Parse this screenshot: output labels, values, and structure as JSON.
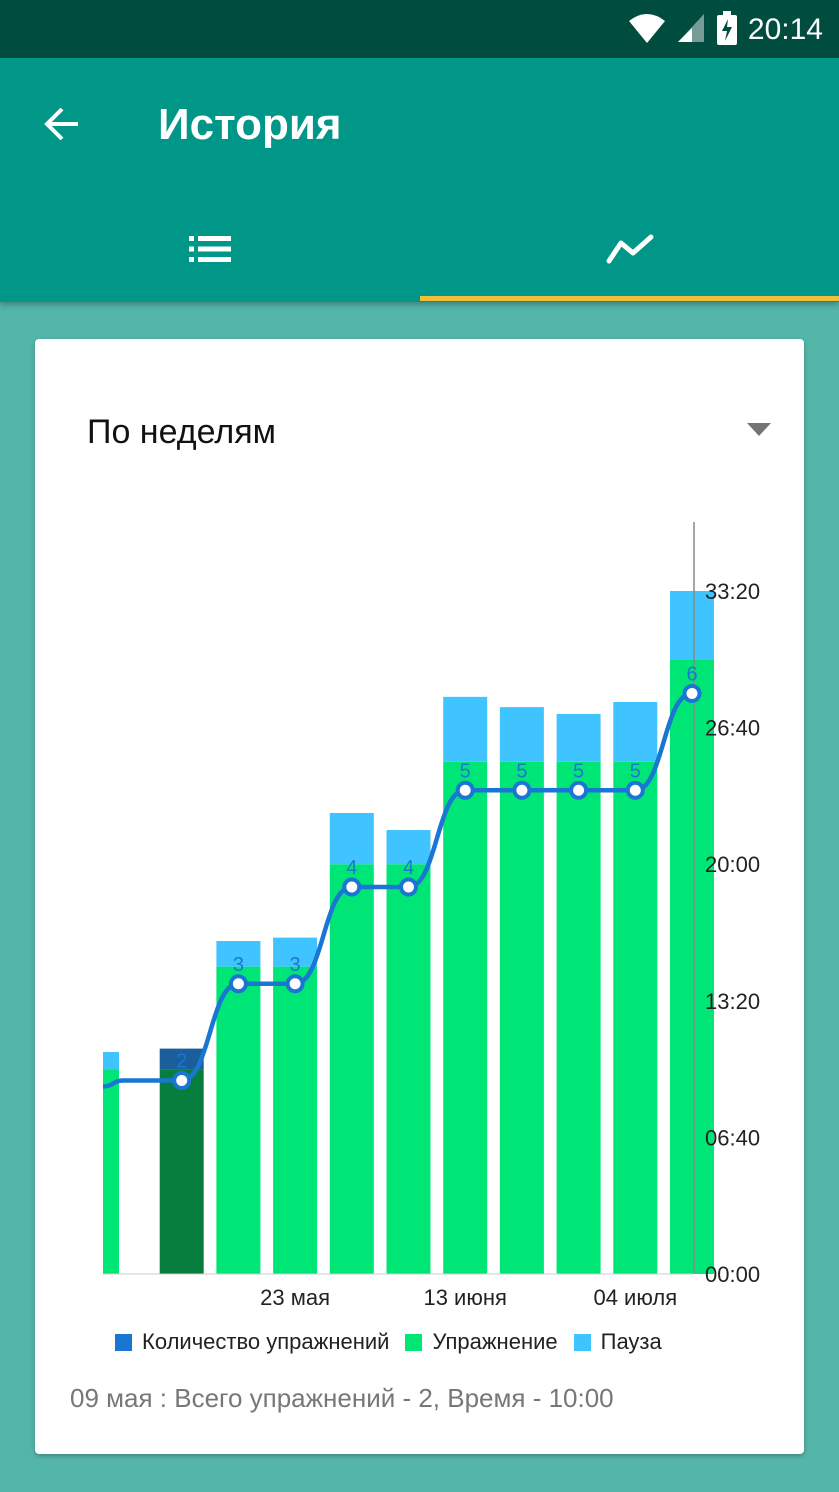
{
  "status_bar": {
    "time": "20:14"
  },
  "app_bar": {
    "title": "История"
  },
  "tabs": [
    {
      "icon": "list-icon",
      "selected": false
    },
    {
      "icon": "trend-line-icon",
      "selected": true
    }
  ],
  "colors": {
    "exercise": "#00e676",
    "pause": "#40c4ff",
    "count": "#1976d2",
    "selected_exercise": "#077d3e",
    "selected_pause": "#1a5f9c"
  },
  "filter": {
    "selected": "По неделям"
  },
  "chart_data": {
    "type": "bar",
    "stacked": true,
    "x_ticks": [
      "23 мая",
      "13 июня",
      "04 июля"
    ],
    "y_axis_position": "right",
    "y_ticks": [
      "00:00",
      "06:40",
      "13:20",
      "20:00",
      "26:40",
      "33:20"
    ],
    "y_range_seconds": [
      0,
      2000
    ],
    "selected_index": 1,
    "series": [
      {
        "name": "Упражнение",
        "values_seconds": [
          600,
          600,
          900,
          900,
          1200,
          1200,
          1500,
          1500,
          1500,
          1500,
          1800
        ]
      },
      {
        "name": "Пауза",
        "values_seconds": [
          50,
          60,
          75,
          85,
          150,
          100,
          190,
          160,
          140,
          175,
          200
        ]
      },
      {
        "name": "Количество упражнений",
        "values": [
          2,
          2,
          3,
          3,
          4,
          4,
          5,
          5,
          5,
          5,
          6
        ]
      }
    ]
  },
  "legend": [
    {
      "label": "Количество упражнений"
    },
    {
      "label": "Упражнение"
    },
    {
      "label": "Пауза"
    }
  ],
  "summary": "09 мая : Всего упражнений - 2, Время - 10:00"
}
